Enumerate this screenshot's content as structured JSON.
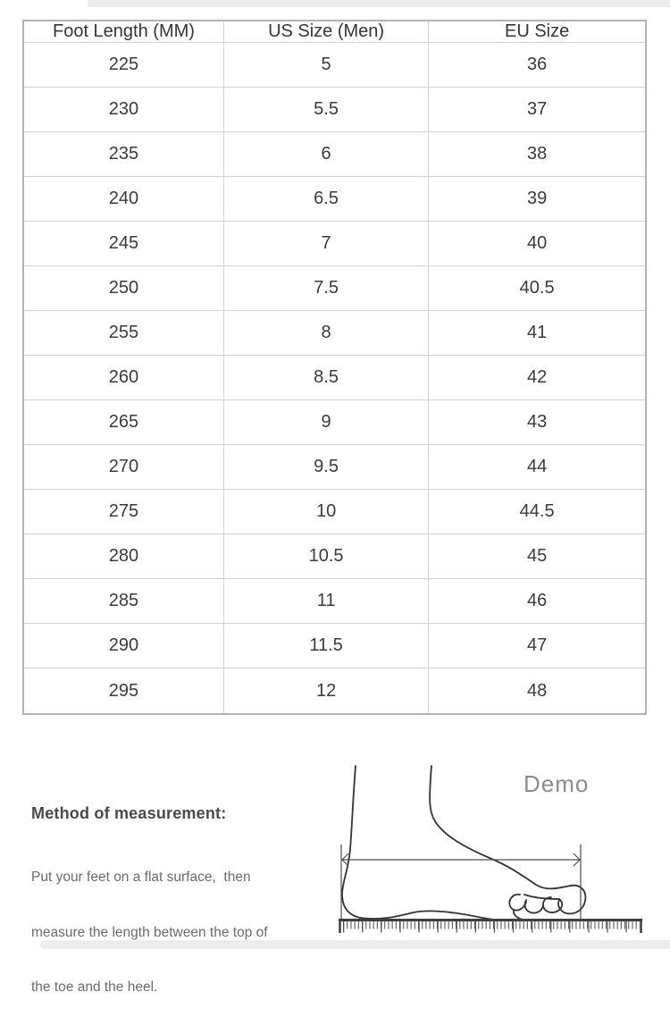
{
  "table": {
    "headers": [
      "Foot Length (MM)",
      "US Size (Men)",
      "EU Size"
    ],
    "rows": [
      [
        "225",
        "5",
        "36"
      ],
      [
        "230",
        "5.5",
        "37"
      ],
      [
        "235",
        "6",
        "38"
      ],
      [
        "240",
        "6.5",
        "39"
      ],
      [
        "245",
        "7",
        "40"
      ],
      [
        "250",
        "7.5",
        "40.5"
      ],
      [
        "255",
        "8",
        "41"
      ],
      [
        "260",
        "8.5",
        "42"
      ],
      [
        "265",
        "9",
        "43"
      ],
      [
        "270",
        "9.5",
        "44"
      ],
      [
        "275",
        "10",
        "44.5"
      ],
      [
        "280",
        "10.5",
        "45"
      ],
      [
        "285",
        "11",
        "46"
      ],
      [
        "290",
        "11.5",
        "47"
      ],
      [
        "295",
        "12",
        "48"
      ]
    ]
  },
  "measurement": {
    "heading": "Method of measurement:",
    "lines": [
      "Put your feet on a flat surface,  then",
      "measure the length between the top of",
      "the toe and the heel."
    ]
  },
  "diagram": {
    "label": "Demo"
  },
  "colors": {
    "table_outer_border": "#b2b2b2",
    "table_inner_border": "#d2d2d2",
    "table_text": "#3b3b3b",
    "heading_text": "#4a4a4a",
    "body_text": "#6b6b6b",
    "demo_text": "#8c8c8c",
    "line_art": "#333333",
    "band": "#ededed"
  }
}
